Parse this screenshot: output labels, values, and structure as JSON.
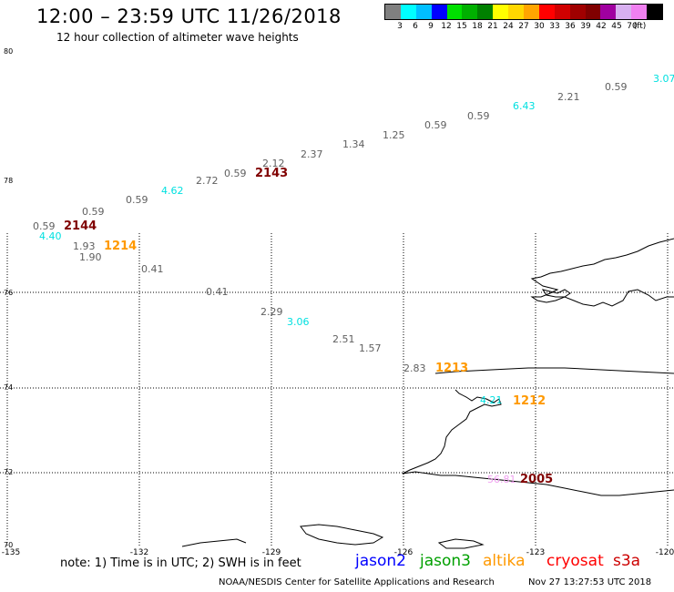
{
  "header": {
    "title": "12:00 – 23:59 UTC 11/26/2018",
    "subtitle": "12 hour collection of altimeter wave heights"
  },
  "color_scale": {
    "colors": [
      "#808080",
      "#00ffff",
      "#00bfff",
      "#0000ff",
      "#00e000",
      "#00b000",
      "#008000",
      "#ffff00",
      "#ffd700",
      "#ffa500",
      "#ff0000",
      "#d00000",
      "#a00000",
      "#800000",
      "#a000a0",
      "#d8b0f0",
      "#f080f0",
      "#000000"
    ],
    "labels": [
      "3",
      "6",
      "9",
      "12",
      "15",
      "18",
      "21",
      "24",
      "27",
      "30",
      "33",
      "36",
      "39",
      "42",
      "45",
      "70",
      "(ft)"
    ]
  },
  "axes": {
    "lat_labels": [
      "80",
      "78",
      "76",
      "74",
      "72",
      "70"
    ],
    "lon_labels": [
      "-135",
      "-132",
      "-129",
      "-126",
      "-123",
      "-120"
    ]
  },
  "swh_labels": [
    {
      "text": "3.07",
      "color": "#00e0e0"
    },
    {
      "text": "0.59",
      "color": "#606060"
    },
    {
      "text": "2.21",
      "color": "#606060"
    },
    {
      "text": "6.43",
      "color": "#00e0e0"
    },
    {
      "text": "0.59",
      "color": "#606060"
    },
    {
      "text": "0.59",
      "color": "#606060"
    },
    {
      "text": "1.25",
      "color": "#606060"
    },
    {
      "text": "1.34",
      "color": "#606060"
    },
    {
      "text": "2.37",
      "color": "#606060"
    },
    {
      "text": "2.12",
      "color": "#606060"
    },
    {
      "text": "0.59",
      "color": "#606060"
    },
    {
      "text": "2.72",
      "color": "#606060"
    },
    {
      "text": "4.62",
      "color": "#00e0e0"
    },
    {
      "text": "0.59",
      "color": "#606060"
    },
    {
      "text": "0.59",
      "color": "#606060"
    },
    {
      "text": "0.59",
      "color": "#606060"
    },
    {
      "text": "4.40",
      "color": "#00e0e0"
    },
    {
      "text": "1.93",
      "color": "#606060"
    },
    {
      "text": "1.90",
      "color": "#606060"
    },
    {
      "text": "0.41",
      "color": "#606060"
    },
    {
      "text": "0.41",
      "color": "#606060"
    },
    {
      "text": "2.29",
      "color": "#606060"
    },
    {
      "text": "3.06",
      "color": "#00e0e0"
    },
    {
      "text": "2.51",
      "color": "#606060"
    },
    {
      "text": "1.57",
      "color": "#606060"
    },
    {
      "text": "2.83",
      "color": "#606060"
    },
    {
      "text": "4.21",
      "color": "#00e0e0"
    },
    {
      "text": "56.81",
      "color": "#f0a0f0"
    }
  ],
  "time_labels": [
    {
      "text": "2143",
      "color": "#800000"
    },
    {
      "text": "2144",
      "color": "#800000"
    },
    {
      "text": "1214",
      "color": "#ff9900"
    },
    {
      "text": "1213",
      "color": "#ff9900"
    },
    {
      "text": "1212",
      "color": "#ff9900"
    },
    {
      "text": "2005",
      "color": "#800000"
    }
  ],
  "footer": {
    "note": "note:  1) Time is in UTC;  2) SWH is in feet",
    "satellites": [
      {
        "name": "jason2",
        "color": "#0000ff"
      },
      {
        "name": "jason3",
        "color": "#00a000"
      },
      {
        "name": "altika",
        "color": "#ff9900"
      },
      {
        "name": "cryosat",
        "color": "#ff0000"
      },
      {
        "name": "s3a",
        "color": "#cc0000"
      }
    ],
    "credit": "NOAA/NESDIS Center for Satellite Applications and Research",
    "stamp": "Nov 27 13:27:53 UTC 2018"
  }
}
